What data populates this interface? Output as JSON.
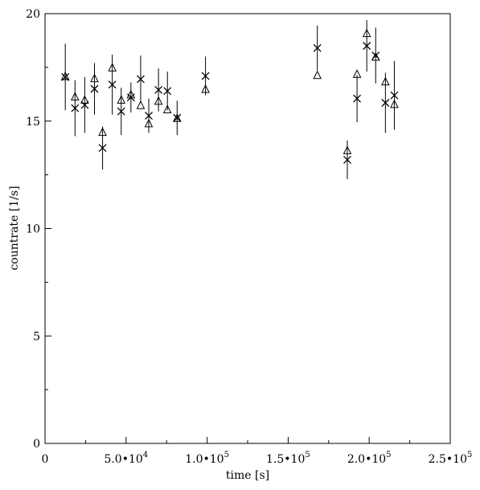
{
  "chart_data": {
    "type": "scatter",
    "title": "",
    "xlabel": "time [s]",
    "ylabel": "countrate [1/s]",
    "xlim": [
      0,
      250000
    ],
    "ylim": [
      0,
      20
    ],
    "grid": false,
    "x_ticks": [
      {
        "value": 0,
        "mantissa": "0",
        "exp": ""
      },
      {
        "value": 50000,
        "mantissa": "5.0•10",
        "exp": "4"
      },
      {
        "value": 100000,
        "mantissa": "1.0•10",
        "exp": "5"
      },
      {
        "value": 150000,
        "mantissa": "1.5•10",
        "exp": "5"
      },
      {
        "value": 200000,
        "mantissa": "2.0•10",
        "exp": "5"
      },
      {
        "value": 250000,
        "mantissa": "2.5•10",
        "exp": "5"
      }
    ],
    "y_ticks": [
      {
        "value": 0,
        "label": "0"
      },
      {
        "value": 5,
        "label": "5"
      },
      {
        "value": 10,
        "label": "10"
      },
      {
        "value": 15,
        "label": "15"
      },
      {
        "value": 20,
        "label": "20"
      }
    ],
    "series": [
      {
        "marker": "triangle",
        "points": [
          {
            "x": 12500,
            "y": 17.1,
            "err": 0
          },
          {
            "x": 18500,
            "y": 16.15,
            "err": 0
          },
          {
            "x": 24500,
            "y": 16.0,
            "err": 0
          },
          {
            "x": 30500,
            "y": 17.0,
            "err": 0
          },
          {
            "x": 35500,
            "y": 14.5,
            "err": 0
          },
          {
            "x": 41500,
            "y": 17.5,
            "err": 0
          },
          {
            "x": 47000,
            "y": 16.0,
            "err": 0
          },
          {
            "x": 53000,
            "y": 16.25,
            "err": 0
          },
          {
            "x": 59000,
            "y": 15.75,
            "err": 0
          },
          {
            "x": 64000,
            "y": 14.9,
            "err": 0
          },
          {
            "x": 70000,
            "y": 15.95,
            "err": 0
          },
          {
            "x": 75500,
            "y": 15.55,
            "err": 0
          },
          {
            "x": 81500,
            "y": 15.15,
            "err": 0
          },
          {
            "x": 99000,
            "y": 16.5,
            "err": 0
          },
          {
            "x": 168000,
            "y": 17.15,
            "err": 0
          },
          {
            "x": 186500,
            "y": 13.65,
            "err": 0
          },
          {
            "x": 192500,
            "y": 17.2,
            "err": 0
          },
          {
            "x": 198500,
            "y": 19.1,
            "err": 0
          },
          {
            "x": 204000,
            "y": 18.0,
            "err": 0
          },
          {
            "x": 210000,
            "y": 16.85,
            "err": 0
          },
          {
            "x": 215500,
            "y": 15.8,
            "err": 0
          }
        ]
      },
      {
        "marker": "cross",
        "points": [
          {
            "x": 12500,
            "y": 17.05,
            "err": 1.55
          },
          {
            "x": 18500,
            "y": 15.6,
            "err": 1.3
          },
          {
            "x": 24500,
            "y": 15.75,
            "err": 1.3
          },
          {
            "x": 30500,
            "y": 16.5,
            "err": 1.2
          },
          {
            "x": 35500,
            "y": 13.75,
            "err": 1.0
          },
          {
            "x": 41500,
            "y": 16.7,
            "err": 1.4
          },
          {
            "x": 47000,
            "y": 15.45,
            "err": 1.1
          },
          {
            "x": 53000,
            "y": 16.1,
            "err": 0.7
          },
          {
            "x": 59000,
            "y": 16.95,
            "err": 1.1
          },
          {
            "x": 64000,
            "y": 15.25,
            "err": 0.8
          },
          {
            "x": 70000,
            "y": 16.45,
            "err": 1.0
          },
          {
            "x": 75500,
            "y": 16.4,
            "err": 0.9
          },
          {
            "x": 81500,
            "y": 15.15,
            "err": 0.8
          },
          {
            "x": 99000,
            "y": 17.1,
            "err": 0.9
          },
          {
            "x": 168000,
            "y": 18.4,
            "err": 1.05
          },
          {
            "x": 186500,
            "y": 13.2,
            "err": 0.9
          },
          {
            "x": 192500,
            "y": 16.05,
            "err": 1.1
          },
          {
            "x": 198500,
            "y": 18.5,
            "err": 1.2
          },
          {
            "x": 204000,
            "y": 18.05,
            "err": 1.3
          },
          {
            "x": 210000,
            "y": 15.85,
            "err": 1.4
          },
          {
            "x": 215500,
            "y": 16.2,
            "err": 1.6
          }
        ]
      }
    ]
  }
}
